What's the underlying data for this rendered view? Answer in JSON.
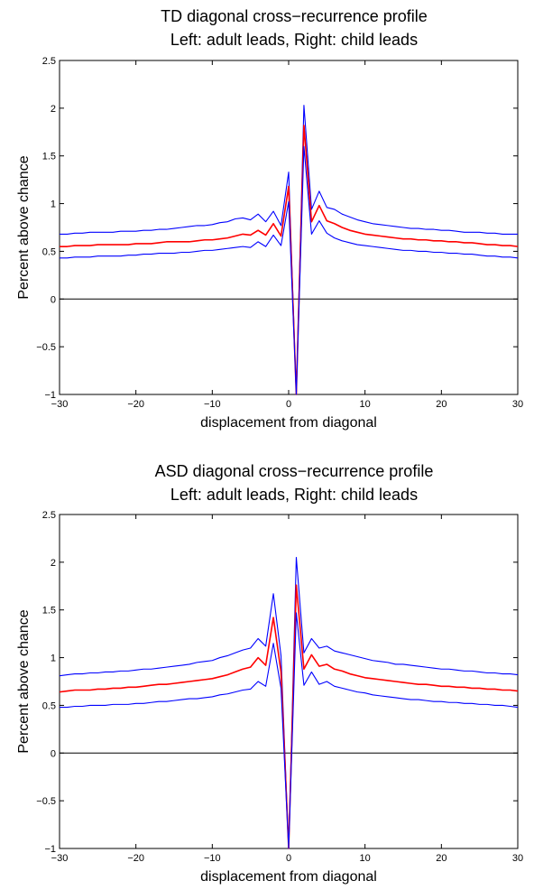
{
  "chart_data": [
    {
      "type": "line",
      "title": "TD diagonal cross−recurrence profile",
      "subtitle": "Left: adult leads, Right: child leads",
      "xlabel": "displacement from diagonal",
      "ylabel": "Percent above chance",
      "xlim": [
        -30,
        30
      ],
      "ylim": [
        -1,
        2.5
      ],
      "x_ticks": [
        "−30",
        "−20",
        "−10",
        "0",
        "10",
        "20",
        "30"
      ],
      "y_ticks": [
        "−1",
        "−0.5",
        "0",
        "0.5",
        "1",
        "1.5",
        "2",
        "2.5"
      ],
      "grid": false,
      "reference_line_y": 0,
      "x": [
        -30,
        -29,
        -28,
        -27,
        -26,
        -25,
        -24,
        -23,
        -22,
        -21,
        -20,
        -19,
        -18,
        -17,
        -16,
        -15,
        -14,
        -13,
        -12,
        -11,
        -10,
        -9,
        -8,
        -7,
        -6,
        -5,
        -4,
        -3,
        -2,
        -1,
        0,
        1,
        2,
        3,
        4,
        5,
        6,
        7,
        8,
        9,
        10,
        11,
        12,
        13,
        14,
        15,
        16,
        17,
        18,
        19,
        20,
        21,
        22,
        23,
        24,
        25,
        26,
        27,
        28,
        29,
        30
      ],
      "series": [
        {
          "color": "#0000ff",
          "values": [
            0.68,
            0.68,
            0.69,
            0.69,
            0.7,
            0.7,
            0.7,
            0.7,
            0.71,
            0.71,
            0.71,
            0.72,
            0.72,
            0.73,
            0.73,
            0.74,
            0.75,
            0.76,
            0.77,
            0.77,
            0.78,
            0.8,
            0.81,
            0.84,
            0.85,
            0.83,
            0.89,
            0.81,
            0.92,
            0.77,
            1.33,
            -1.0,
            2.03,
            0.94,
            1.13,
            0.96,
            0.94,
            0.89,
            0.86,
            0.83,
            0.81,
            0.79,
            0.78,
            0.77,
            0.76,
            0.75,
            0.74,
            0.74,
            0.73,
            0.73,
            0.72,
            0.72,
            0.71,
            0.7,
            0.7,
            0.7,
            0.69,
            0.69,
            0.68,
            0.68,
            0.68
          ]
        },
        {
          "color": "#ff0000",
          "values": [
            0.55,
            0.55,
            0.56,
            0.56,
            0.56,
            0.57,
            0.57,
            0.57,
            0.57,
            0.57,
            0.58,
            0.58,
            0.58,
            0.59,
            0.6,
            0.6,
            0.6,
            0.6,
            0.61,
            0.62,
            0.62,
            0.63,
            0.64,
            0.66,
            0.68,
            0.67,
            0.72,
            0.67,
            0.79,
            0.66,
            1.18,
            -1.0,
            1.82,
            0.81,
            0.98,
            0.82,
            0.79,
            0.75,
            0.72,
            0.7,
            0.68,
            0.67,
            0.66,
            0.65,
            0.64,
            0.63,
            0.63,
            0.62,
            0.62,
            0.61,
            0.61,
            0.6,
            0.6,
            0.59,
            0.59,
            0.58,
            0.57,
            0.57,
            0.56,
            0.56,
            0.55
          ]
        },
        {
          "color": "#0000ff",
          "values": [
            0.43,
            0.43,
            0.44,
            0.44,
            0.44,
            0.45,
            0.45,
            0.45,
            0.45,
            0.46,
            0.46,
            0.47,
            0.47,
            0.48,
            0.48,
            0.48,
            0.49,
            0.49,
            0.5,
            0.51,
            0.51,
            0.52,
            0.53,
            0.54,
            0.55,
            0.54,
            0.6,
            0.55,
            0.67,
            0.56,
            1.02,
            -1.0,
            1.6,
            0.68,
            0.82,
            0.69,
            0.64,
            0.61,
            0.59,
            0.57,
            0.56,
            0.55,
            0.54,
            0.53,
            0.52,
            0.51,
            0.51,
            0.5,
            0.5,
            0.49,
            0.49,
            0.48,
            0.48,
            0.47,
            0.47,
            0.46,
            0.45,
            0.45,
            0.44,
            0.44,
            0.43
          ]
        }
      ]
    },
    {
      "type": "line",
      "title": "ASD diagonal cross−recurrence profile",
      "subtitle": "Left: adult leads, Right: child leads",
      "xlabel": "displacement from diagonal",
      "ylabel": "Percent above chance",
      "xlim": [
        -30,
        30
      ],
      "ylim": [
        -1,
        2.5
      ],
      "x_ticks": [
        "−30",
        "−20",
        "−10",
        "0",
        "10",
        "20",
        "30"
      ],
      "y_ticks": [
        "−1",
        "−0.5",
        "0",
        "0.5",
        "1",
        "1.5",
        "2",
        "2.5"
      ],
      "grid": false,
      "reference_line_y": 0,
      "x": [
        -30,
        -29,
        -28,
        -27,
        -26,
        -25,
        -24,
        -23,
        -22,
        -21,
        -20,
        -19,
        -18,
        -17,
        -16,
        -15,
        -14,
        -13,
        -12,
        -11,
        -10,
        -9,
        -8,
        -7,
        -6,
        -5,
        -4,
        -3,
        -2,
        -1,
        0,
        1,
        2,
        3,
        4,
        5,
        6,
        7,
        8,
        9,
        10,
        11,
        12,
        13,
        14,
        15,
        16,
        17,
        18,
        19,
        20,
        21,
        22,
        23,
        24,
        25,
        26,
        27,
        28,
        29,
        30
      ],
      "series": [
        {
          "color": "#0000ff",
          "values": [
            0.81,
            0.82,
            0.83,
            0.83,
            0.84,
            0.84,
            0.85,
            0.85,
            0.86,
            0.86,
            0.87,
            0.88,
            0.88,
            0.89,
            0.9,
            0.91,
            0.92,
            0.93,
            0.95,
            0.96,
            0.97,
            1.0,
            1.02,
            1.05,
            1.08,
            1.1,
            1.2,
            1.12,
            1.67,
            1.02,
            -1.0,
            2.05,
            1.05,
            1.2,
            1.1,
            1.12,
            1.07,
            1.05,
            1.03,
            1.01,
            0.99,
            0.97,
            0.96,
            0.95,
            0.93,
            0.93,
            0.92,
            0.91,
            0.9,
            0.89,
            0.88,
            0.88,
            0.87,
            0.86,
            0.86,
            0.85,
            0.84,
            0.84,
            0.83,
            0.83,
            0.82
          ]
        },
        {
          "color": "#ff0000",
          "values": [
            0.64,
            0.65,
            0.66,
            0.66,
            0.66,
            0.67,
            0.67,
            0.68,
            0.68,
            0.69,
            0.69,
            0.7,
            0.71,
            0.72,
            0.72,
            0.73,
            0.74,
            0.75,
            0.76,
            0.77,
            0.78,
            0.8,
            0.82,
            0.85,
            0.88,
            0.9,
            1.0,
            0.92,
            1.42,
            0.85,
            -1.0,
            1.76,
            0.88,
            1.03,
            0.91,
            0.93,
            0.88,
            0.86,
            0.83,
            0.81,
            0.79,
            0.78,
            0.77,
            0.76,
            0.75,
            0.74,
            0.73,
            0.72,
            0.72,
            0.71,
            0.7,
            0.7,
            0.69,
            0.69,
            0.68,
            0.68,
            0.67,
            0.67,
            0.66,
            0.66,
            0.65
          ]
        },
        {
          "color": "#0000ff",
          "values": [
            0.48,
            0.48,
            0.49,
            0.49,
            0.5,
            0.5,
            0.5,
            0.51,
            0.51,
            0.51,
            0.52,
            0.52,
            0.53,
            0.54,
            0.54,
            0.55,
            0.56,
            0.57,
            0.57,
            0.58,
            0.59,
            0.61,
            0.62,
            0.64,
            0.66,
            0.67,
            0.75,
            0.7,
            1.15,
            0.68,
            -1.0,
            1.47,
            0.71,
            0.85,
            0.72,
            0.75,
            0.7,
            0.68,
            0.66,
            0.64,
            0.63,
            0.61,
            0.6,
            0.59,
            0.58,
            0.57,
            0.56,
            0.56,
            0.55,
            0.54,
            0.54,
            0.53,
            0.53,
            0.52,
            0.52,
            0.51,
            0.51,
            0.5,
            0.5,
            0.49,
            0.48
          ]
        }
      ]
    }
  ]
}
